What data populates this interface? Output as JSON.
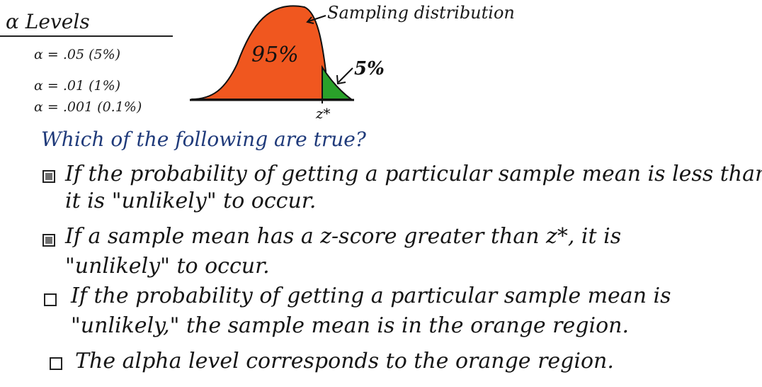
{
  "alpha": {
    "title": "α Levels",
    "levels": [
      "α = .05 (5%)",
      "α = .01 (1%)",
      "α = .001 (0.1%)"
    ]
  },
  "distribution": {
    "label": "Sampling distribution",
    "main_region_label": "95%",
    "tail_region_label": "5%",
    "critical_label": "z*",
    "colors": {
      "main": "#f0571f",
      "tail": "#2aa12a",
      "outline": "#111111"
    }
  },
  "question": "Which of the following are true?",
  "options": [
    {
      "checked": true,
      "line1": "If the probability of getting a particular sample mean is less than α,",
      "line2": "it is \"unlikely\" to occur."
    },
    {
      "checked": true,
      "line1": "If a sample mean has a z-score greater than z*, it is",
      "line2": "\"unlikely\" to occur."
    },
    {
      "checked": false,
      "line1": "If the probability of getting a particular sample mean is",
      "line2": "\"unlikely,\" the sample mean is in the orange region."
    },
    {
      "checked": false,
      "line1": "The alpha level corresponds to the orange region.",
      "line2": ""
    }
  ]
}
